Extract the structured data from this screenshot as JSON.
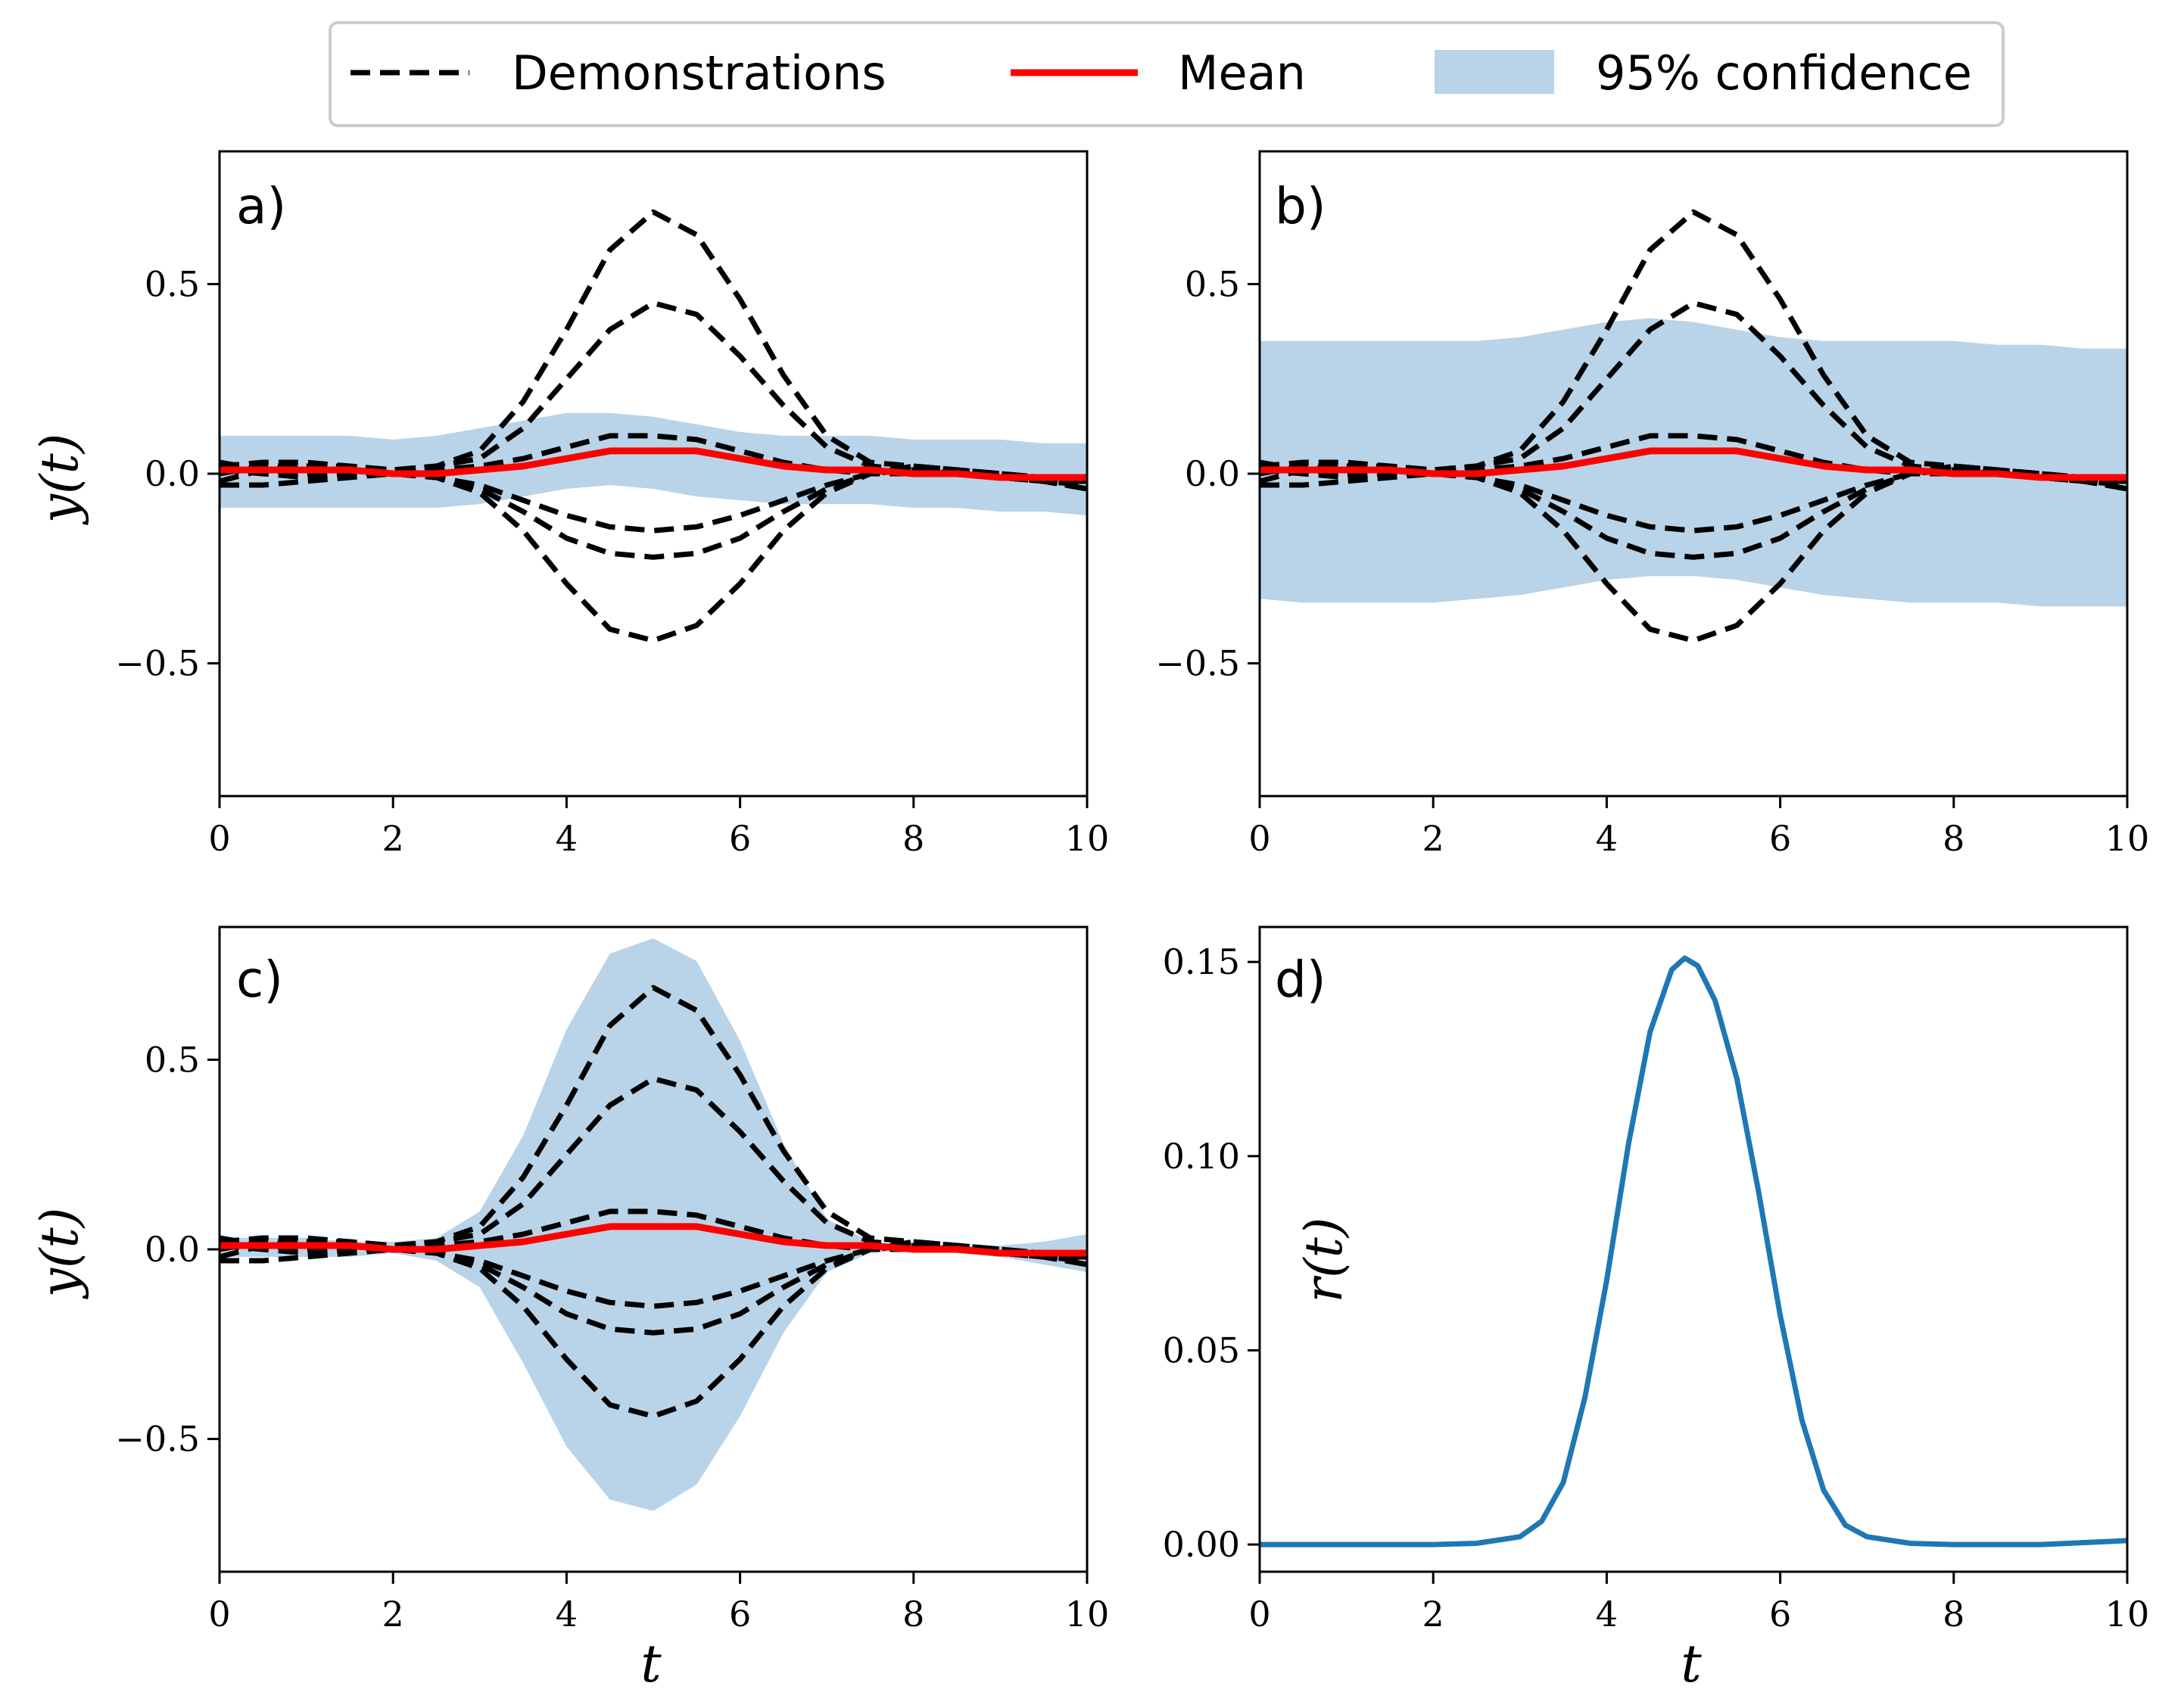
{
  "legend": {
    "demonstrations": "Demonstrations",
    "mean": "Mean",
    "confidence": "95% confidence"
  },
  "colors": {
    "demo": "#000000",
    "mean": "#ff0000",
    "band": "#b9d4e8",
    "reward": "#1f77b4"
  },
  "chart_data": [
    {
      "id": "a",
      "type": "line",
      "panel_label": "a)",
      "xlabel": "",
      "ylabel": "y(t)",
      "xlim": [
        0,
        10
      ],
      "ylim": [
        -0.85,
        0.85
      ],
      "xticks": [
        0,
        2,
        4,
        6,
        8,
        10
      ],
      "xtick_labels": [
        "0",
        "2",
        "4",
        "6",
        "8",
        "10"
      ],
      "yticks": [
        0.5,
        0.0,
        -0.5
      ],
      "ytick_labels": [
        "0.5",
        "0.0",
        "−0.5"
      ],
      "t": [
        0,
        0.5,
        1,
        1.5,
        2,
        2.5,
        3,
        3.5,
        4,
        4.5,
        5,
        5.5,
        6,
        6.5,
        7,
        7.5,
        8,
        8.5,
        9,
        9.5,
        10
      ],
      "demonstrations": [
        [
          0.02,
          0.03,
          0.03,
          0.02,
          0.01,
          0.02,
          0.06,
          0.19,
          0.38,
          0.59,
          0.69,
          0.63,
          0.46,
          0.26,
          0.1,
          0.03,
          0.02,
          0.01,
          0.0,
          -0.01,
          -0.02
        ],
        [
          -0.02,
          0.01,
          0.02,
          0.02,
          0.01,
          0.02,
          0.04,
          0.12,
          0.25,
          0.38,
          0.45,
          0.42,
          0.31,
          0.18,
          0.07,
          0.02,
          0.01,
          0.0,
          -0.01,
          -0.02,
          -0.02
        ],
        [
          0.0,
          0.02,
          0.02,
          0.01,
          0.0,
          0.01,
          0.02,
          0.04,
          0.07,
          0.1,
          0.1,
          0.09,
          0.06,
          0.03,
          0.01,
          0.0,
          0.0,
          0.0,
          0.0,
          -0.01,
          -0.02
        ],
        [
          0.01,
          0.0,
          -0.01,
          0.0,
          0.0,
          -0.01,
          -0.03,
          -0.07,
          -0.11,
          -0.14,
          -0.15,
          -0.14,
          -0.11,
          -0.07,
          -0.03,
          0.0,
          0.01,
          0.0,
          -0.01,
          -0.02,
          -0.03
        ],
        [
          -0.03,
          -0.03,
          -0.02,
          -0.01,
          0.0,
          -0.01,
          -0.04,
          -0.1,
          -0.17,
          -0.21,
          -0.22,
          -0.21,
          -0.17,
          -0.1,
          -0.04,
          0.0,
          0.02,
          0.01,
          0.0,
          -0.02,
          -0.04
        ],
        [
          0.03,
          0.01,
          0.0,
          0.0,
          0.0,
          -0.01,
          -0.05,
          -0.15,
          -0.29,
          -0.41,
          -0.44,
          -0.4,
          -0.29,
          -0.15,
          -0.05,
          0.0,
          0.02,
          0.01,
          0.0,
          -0.02,
          -0.04
        ]
      ],
      "mean": [
        0.01,
        0.01,
        0.01,
        0.01,
        0.0,
        0.0,
        0.01,
        0.02,
        0.04,
        0.06,
        0.06,
        0.06,
        0.04,
        0.02,
        0.01,
        0.01,
        0.0,
        0.0,
        -0.01,
        -0.01,
        -0.01
      ],
      "band_upper": [
        0.1,
        0.1,
        0.1,
        0.1,
        0.09,
        0.1,
        0.12,
        0.14,
        0.16,
        0.16,
        0.15,
        0.13,
        0.11,
        0.1,
        0.1,
        0.1,
        0.09,
        0.09,
        0.09,
        0.08,
        0.08
      ],
      "band_lower": [
        -0.09,
        -0.09,
        -0.09,
        -0.09,
        -0.09,
        -0.09,
        -0.08,
        -0.06,
        -0.04,
        -0.03,
        -0.04,
        -0.06,
        -0.07,
        -0.08,
        -0.08,
        -0.08,
        -0.09,
        -0.09,
        -0.1,
        -0.1,
        -0.11
      ]
    },
    {
      "id": "b",
      "type": "line",
      "panel_label": "b)",
      "xlabel": "",
      "ylabel": "",
      "xlim": [
        0,
        10
      ],
      "ylim": [
        -0.85,
        0.85
      ],
      "xticks": [
        0,
        2,
        4,
        6,
        8,
        10
      ],
      "xtick_labels": [
        "0",
        "2",
        "4",
        "6",
        "8",
        "10"
      ],
      "yticks": [
        0.5,
        0.0,
        -0.5
      ],
      "ytick_labels": [
        "0.5",
        "0.0",
        "−0.5"
      ],
      "t": [
        0,
        0.5,
        1,
        1.5,
        2,
        2.5,
        3,
        3.5,
        4,
        4.5,
        5,
        5.5,
        6,
        6.5,
        7,
        7.5,
        8,
        8.5,
        9,
        9.5,
        10
      ],
      "demonstrations": [
        [
          0.02,
          0.03,
          0.03,
          0.02,
          0.01,
          0.02,
          0.06,
          0.19,
          0.38,
          0.59,
          0.69,
          0.63,
          0.46,
          0.26,
          0.1,
          0.03,
          0.02,
          0.01,
          0.0,
          -0.01,
          -0.02
        ],
        [
          -0.02,
          0.01,
          0.02,
          0.02,
          0.01,
          0.02,
          0.04,
          0.12,
          0.25,
          0.38,
          0.45,
          0.42,
          0.31,
          0.18,
          0.07,
          0.02,
          0.01,
          0.0,
          -0.01,
          -0.02,
          -0.02
        ],
        [
          0.0,
          0.02,
          0.02,
          0.01,
          0.0,
          0.01,
          0.02,
          0.04,
          0.07,
          0.1,
          0.1,
          0.09,
          0.06,
          0.03,
          0.01,
          0.0,
          0.0,
          0.0,
          0.0,
          -0.01,
          -0.02
        ],
        [
          0.01,
          0.0,
          -0.01,
          0.0,
          0.0,
          -0.01,
          -0.03,
          -0.07,
          -0.11,
          -0.14,
          -0.15,
          -0.14,
          -0.11,
          -0.07,
          -0.03,
          0.0,
          0.01,
          0.0,
          -0.01,
          -0.02,
          -0.03
        ],
        [
          -0.03,
          -0.03,
          -0.02,
          -0.01,
          0.0,
          -0.01,
          -0.04,
          -0.1,
          -0.17,
          -0.21,
          -0.22,
          -0.21,
          -0.17,
          -0.1,
          -0.04,
          0.0,
          0.02,
          0.01,
          0.0,
          -0.02,
          -0.04
        ],
        [
          0.03,
          0.01,
          0.0,
          0.0,
          0.0,
          -0.01,
          -0.05,
          -0.15,
          -0.29,
          -0.41,
          -0.44,
          -0.4,
          -0.29,
          -0.15,
          -0.05,
          0.0,
          0.02,
          0.01,
          0.0,
          -0.02,
          -0.04
        ]
      ],
      "mean": [
        0.01,
        0.01,
        0.01,
        0.01,
        0.0,
        0.0,
        0.01,
        0.02,
        0.04,
        0.06,
        0.06,
        0.06,
        0.04,
        0.02,
        0.01,
        0.01,
        0.0,
        0.0,
        -0.01,
        -0.01,
        -0.01
      ],
      "band_upper": [
        0.35,
        0.35,
        0.35,
        0.35,
        0.35,
        0.35,
        0.36,
        0.38,
        0.4,
        0.41,
        0.4,
        0.38,
        0.36,
        0.35,
        0.35,
        0.35,
        0.35,
        0.34,
        0.34,
        0.33,
        0.33
      ],
      "band_lower": [
        -0.33,
        -0.34,
        -0.34,
        -0.34,
        -0.34,
        -0.33,
        -0.32,
        -0.3,
        -0.28,
        -0.27,
        -0.27,
        -0.28,
        -0.3,
        -0.32,
        -0.33,
        -0.34,
        -0.34,
        -0.34,
        -0.35,
        -0.35,
        -0.35
      ]
    },
    {
      "id": "c",
      "type": "line",
      "panel_label": "c)",
      "xlabel": "t",
      "ylabel": "y(t)",
      "xlim": [
        0,
        10
      ],
      "ylim": [
        -0.85,
        0.85
      ],
      "xticks": [
        0,
        2,
        4,
        6,
        8,
        10
      ],
      "xtick_labels": [
        "0",
        "2",
        "4",
        "6",
        "8",
        "10"
      ],
      "yticks": [
        0.5,
        0.0,
        -0.5
      ],
      "ytick_labels": [
        "0.5",
        "0.0",
        "−0.5"
      ],
      "t": [
        0,
        0.5,
        1,
        1.5,
        2,
        2.5,
        3,
        3.5,
        4,
        4.5,
        5,
        5.5,
        6,
        6.5,
        7,
        7.5,
        8,
        8.5,
        9,
        9.5,
        10
      ],
      "demonstrations": [
        [
          0.02,
          0.03,
          0.03,
          0.02,
          0.01,
          0.02,
          0.06,
          0.19,
          0.38,
          0.59,
          0.69,
          0.63,
          0.46,
          0.26,
          0.1,
          0.03,
          0.02,
          0.01,
          0.0,
          -0.01,
          -0.02
        ],
        [
          -0.02,
          0.01,
          0.02,
          0.02,
          0.01,
          0.02,
          0.04,
          0.12,
          0.25,
          0.38,
          0.45,
          0.42,
          0.31,
          0.18,
          0.07,
          0.02,
          0.01,
          0.0,
          -0.01,
          -0.02,
          -0.02
        ],
        [
          0.0,
          0.02,
          0.02,
          0.01,
          0.0,
          0.01,
          0.02,
          0.04,
          0.07,
          0.1,
          0.1,
          0.09,
          0.06,
          0.03,
          0.01,
          0.0,
          0.0,
          0.0,
          0.0,
          -0.01,
          -0.02
        ],
        [
          0.01,
          0.0,
          -0.01,
          0.0,
          0.0,
          -0.01,
          -0.03,
          -0.07,
          -0.11,
          -0.14,
          -0.15,
          -0.14,
          -0.11,
          -0.07,
          -0.03,
          0.0,
          0.01,
          0.0,
          -0.01,
          -0.02,
          -0.03
        ],
        [
          -0.03,
          -0.03,
          -0.02,
          -0.01,
          0.0,
          -0.01,
          -0.04,
          -0.1,
          -0.17,
          -0.21,
          -0.22,
          -0.21,
          -0.17,
          -0.1,
          -0.04,
          0.0,
          0.02,
          0.01,
          0.0,
          -0.02,
          -0.04
        ],
        [
          0.03,
          0.01,
          0.0,
          0.0,
          0.0,
          -0.01,
          -0.05,
          -0.15,
          -0.29,
          -0.41,
          -0.44,
          -0.4,
          -0.29,
          -0.15,
          -0.05,
          0.0,
          0.02,
          0.01,
          0.0,
          -0.02,
          -0.04
        ]
      ],
      "mean": [
        0.01,
        0.01,
        0.01,
        0.01,
        0.0,
        0.0,
        0.01,
        0.02,
        0.04,
        0.06,
        0.06,
        0.06,
        0.04,
        0.02,
        0.01,
        0.01,
        0.0,
        0.0,
        -0.01,
        -0.01,
        -0.01
      ],
      "band_upper": [
        0.03,
        0.03,
        0.03,
        0.02,
        0.02,
        0.03,
        0.1,
        0.3,
        0.58,
        0.78,
        0.82,
        0.76,
        0.55,
        0.28,
        0.08,
        0.02,
        0.01,
        0.01,
        0.01,
        0.02,
        0.04
      ],
      "band_lower": [
        -0.02,
        -0.02,
        -0.02,
        -0.02,
        -0.01,
        -0.03,
        -0.1,
        -0.3,
        -0.52,
        -0.66,
        -0.69,
        -0.62,
        -0.44,
        -0.22,
        -0.06,
        -0.01,
        0.0,
        -0.01,
        -0.02,
        -0.04,
        -0.06
      ]
    },
    {
      "id": "d",
      "type": "line",
      "panel_label": "d)",
      "xlabel": "t",
      "ylabel": "r(t)",
      "xlim": [
        0,
        10
      ],
      "ylim": [
        -0.007,
        0.159
      ],
      "xticks": [
        0,
        2,
        4,
        6,
        8,
        10
      ],
      "xtick_labels": [
        "0",
        "2",
        "4",
        "6",
        "8",
        "10"
      ],
      "yticks": [
        0.15,
        0.1,
        0.05,
        0.0
      ],
      "ytick_labels": [
        "0.15",
        "0.10",
        "0.05",
        "0.00"
      ],
      "t": [
        0,
        1,
        2,
        2.5,
        3,
        3.25,
        3.5,
        3.75,
        4,
        4.25,
        4.5,
        4.75,
        4.9,
        5.05,
        5.25,
        5.5,
        5.75,
        6,
        6.25,
        6.5,
        6.75,
        7,
        7.5,
        8,
        9,
        10
      ],
      "values": [
        0.0,
        0.0,
        0.0,
        0.0003,
        0.002,
        0.006,
        0.016,
        0.038,
        0.068,
        0.103,
        0.132,
        0.148,
        0.151,
        0.149,
        0.14,
        0.12,
        0.091,
        0.059,
        0.032,
        0.014,
        0.005,
        0.002,
        0.0003,
        0.0,
        0.0,
        0.001
      ]
    }
  ]
}
